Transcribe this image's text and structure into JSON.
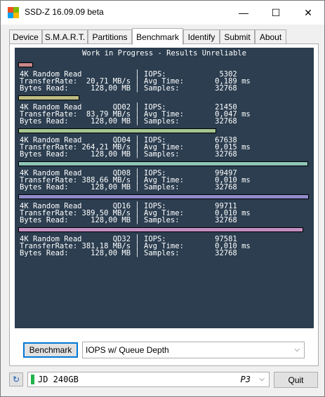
{
  "window": {
    "title": "SSD-Z 16.09.09 beta",
    "minimize": "—",
    "maximize": "☐",
    "close": "✕"
  },
  "tabs": [
    "Device",
    "S.M.A.R.T.",
    "Partitions",
    "Benchmark",
    "Identify",
    "Submit",
    "About"
  ],
  "active_tab": "Benchmark",
  "console": {
    "heading": "Work in Progress - Results Unreliable",
    "results": [
      {
        "test": "4K Random Read",
        "qd": "",
        "rate": "20,71 MB/s",
        "bytes": "128,00 MB",
        "iops": "5302",
        "avg": "0,189 ms",
        "samples": "32768",
        "bar_fraction": 0.05,
        "bar_color": "#c9878a"
      },
      {
        "test": "4K Random Read",
        "qd": "QD02",
        "rate": "83,79 MB/s",
        "bytes": "128,00 MB",
        "iops": "21450",
        "avg": "0,047 ms",
        "samples": "32768",
        "bar_fraction": 0.21,
        "bar_color": "#bdbc84"
      },
      {
        "test": "4K Random Read",
        "qd": "QD04",
        "rate": "264,21 MB/s",
        "bytes": "128,00 MB",
        "iops": "67638",
        "avg": "0,015 ms",
        "samples": "32768",
        "bar_fraction": 0.68,
        "bar_color": "#a5c691"
      },
      {
        "test": "4K Random Read",
        "qd": "QD08",
        "rate": "388,66 MB/s",
        "bytes": "128,00 MB",
        "iops": "99497",
        "avg": "0,010 ms",
        "samples": "32768",
        "bar_fraction": 0.998,
        "bar_color": "#8ec5b8"
      },
      {
        "test": "4K Random Read",
        "qd": "QD16",
        "rate": "389,50 MB/s",
        "bytes": "128,00 MB",
        "iops": "99711",
        "avg": "0,010 ms",
        "samples": "32768",
        "bar_fraction": 1.0,
        "bar_color": "#8e8ccb"
      },
      {
        "test": "4K Random Read",
        "qd": "QD32",
        "rate": "381,18 MB/s",
        "bytes": "128,00 MB",
        "iops": "97581",
        "avg": "0,010 ms",
        "samples": "32768",
        "bar_fraction": 0.98,
        "bar_color": "#c58ec2"
      }
    ],
    "labels": {
      "transfer": "TransferRate:",
      "bytes": "Bytes Read:",
      "iops": "IOPS:",
      "avg": "Avg Time:",
      "samples": "Samples:"
    }
  },
  "controls": {
    "benchmark_button": "Benchmark",
    "mode_select": "IOPS w/ Queue Depth"
  },
  "footer": {
    "drive_name": "JD 240GB",
    "drive_slot": "P3",
    "quit_button": "Quit"
  }
}
